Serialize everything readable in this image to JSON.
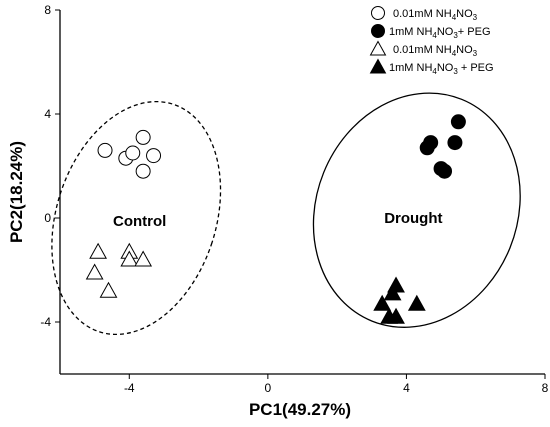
{
  "chart_data": {
    "type": "scatter",
    "xlabel": "PC1(49.27%)",
    "ylabel": "PC2(18.24%)",
    "xlim": [
      -6,
      8
    ],
    "ylim": [
      -6,
      8
    ],
    "xticks": [
      -4,
      0,
      4,
      8
    ],
    "yticks": [
      -4,
      0,
      4,
      8
    ],
    "legend_position": "top-right",
    "series": [
      {
        "name_parts": [
          "0.01mM NH",
          "4",
          "NO",
          "3",
          ""
        ],
        "marker": "circle-open",
        "points": [
          [
            -4.7,
            2.6
          ],
          [
            -4.1,
            2.3
          ],
          [
            -3.9,
            2.5
          ],
          [
            -3.6,
            3.1
          ],
          [
            -3.3,
            2.4
          ],
          [
            -3.6,
            1.8
          ]
        ]
      },
      {
        "name_parts": [
          "1mM NH",
          "4",
          "NO",
          "3",
          "+ PEG"
        ],
        "marker": "circle-filled",
        "points": [
          [
            4.7,
            2.9
          ],
          [
            4.6,
            2.7
          ],
          [
            5.5,
            3.7
          ],
          [
            5.4,
            2.9
          ],
          [
            5.0,
            1.9
          ],
          [
            5.1,
            1.8
          ]
        ]
      },
      {
        "name_parts": [
          "0.01mM NH",
          "4",
          "NO",
          "3",
          ""
        ],
        "marker": "triangle-open",
        "points": [
          [
            -4.9,
            -1.3
          ],
          [
            -4.0,
            -1.3
          ],
          [
            -4.0,
            -1.6
          ],
          [
            -3.6,
            -1.6
          ],
          [
            -5.0,
            -2.1
          ],
          [
            -4.6,
            -2.8
          ]
        ]
      },
      {
        "name_parts": [
          "1mM NH",
          "4",
          "NO",
          "3",
          " + PEG"
        ],
        "marker": "triangle-filled",
        "points": [
          [
            3.7,
            -2.6
          ],
          [
            3.6,
            -2.9
          ],
          [
            3.3,
            -3.3
          ],
          [
            3.5,
            -3.8
          ],
          [
            3.7,
            -3.8
          ],
          [
            4.3,
            -3.3
          ]
        ]
      }
    ],
    "annotations": [
      {
        "text": "Control",
        "x": -3.7,
        "y": -0.3
      },
      {
        "text": "Drought",
        "x": 4.2,
        "y": -0.2
      }
    ],
    "groups": [
      {
        "label": "Control",
        "cx": -3.8,
        "cy": 0.0,
        "rx": 2.3,
        "ry": 4.6,
        "rotation_deg": 18,
        "style": "dashed"
      },
      {
        "label": "Drought",
        "cx": 4.3,
        "cy": 0.3,
        "rx": 2.9,
        "ry": 4.6,
        "rotation_deg": 22,
        "style": "solid"
      }
    ]
  }
}
